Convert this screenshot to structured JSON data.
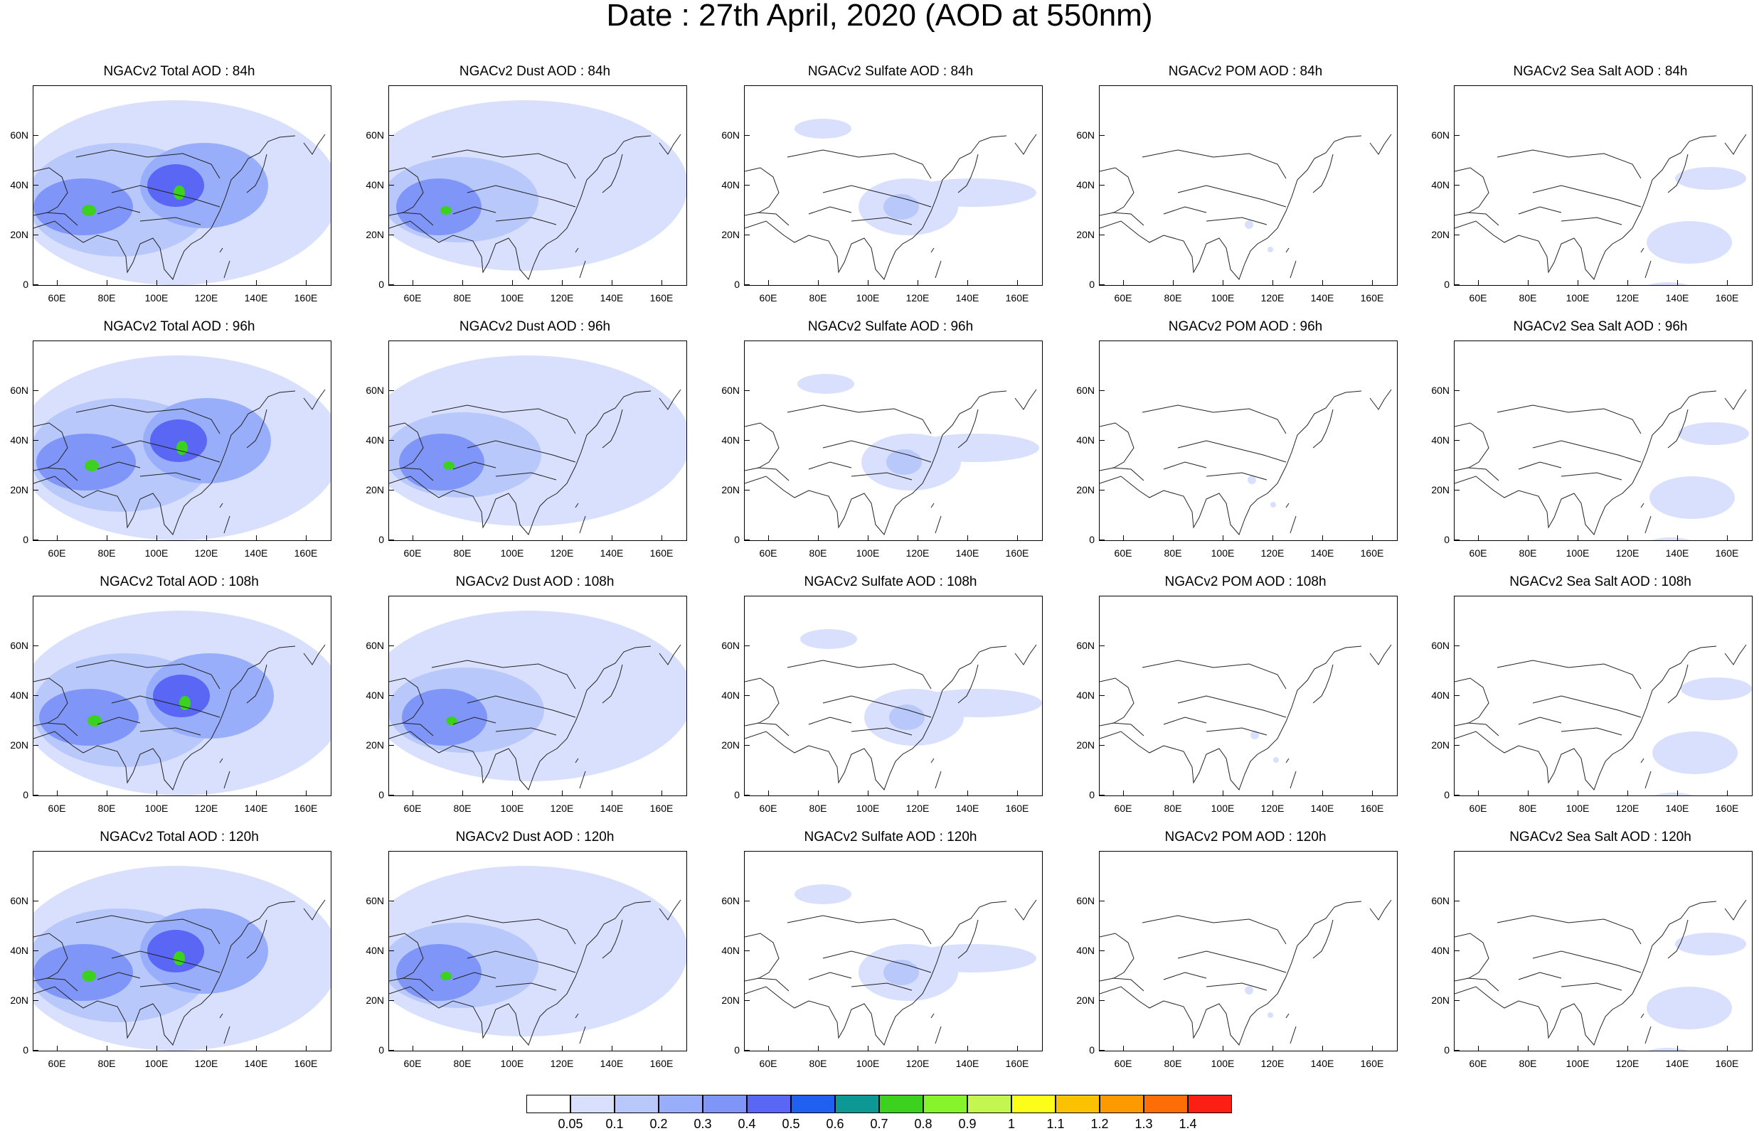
{
  "title": "Date : 27th April, 2020 (AOD at 550nm)",
  "panels": [
    [
      "NGACv2 Total AOD : 84h",
      "NGACv2 Dust AOD : 84h",
      "NGACv2 Sulfate AOD : 84h",
      "NGACv2 POM AOD : 84h",
      "NGACv2 Sea Salt AOD : 84h"
    ],
    [
      "NGACv2 Total AOD : 96h",
      "NGACv2 Dust AOD : 96h",
      "NGACv2 Sulfate AOD : 96h",
      "NGACv2 POM AOD : 96h",
      "NGACv2 Sea Salt AOD : 96h"
    ],
    [
      "NGACv2 Total AOD : 108h",
      "NGACv2 Dust AOD : 108h",
      "NGACv2 Sulfate AOD : 108h",
      "NGACv2 POM AOD : 108h",
      "NGACv2 Sea Salt AOD : 108h"
    ],
    [
      "NGACv2 Total AOD : 120h",
      "NGACv2 Dust AOD : 120h",
      "NGACv2 Sulfate AOD : 120h",
      "NGACv2 POM AOD : 120h",
      "NGACv2 Sea Salt  AOD : 120h"
    ]
  ],
  "lat_labels": [
    "60N",
    "40N",
    "20N",
    "0"
  ],
  "lon_labels": [
    "60E",
    "80E",
    "100E",
    "120E",
    "140E",
    "160E"
  ],
  "colorbar": {
    "labels": [
      "0.05",
      "0.1",
      "0.2",
      "0.3",
      "0.4",
      "0.5",
      "0.6",
      "0.7",
      "0.8",
      "0.9",
      "1",
      "1.1",
      "1.2",
      "1.3",
      "1.4"
    ],
    "colors": [
      "#ffffff",
      "#d9e0fd",
      "#b9c8fb",
      "#98aefa",
      "#7f95f8",
      "#5a67f5",
      "#1f60f0",
      "#0d9896",
      "#3cd11f",
      "#86f42a",
      "#c3f64e",
      "#fcfe1a",
      "#fcc100",
      "#fd9a00",
      "#fd6e09",
      "#fb2013"
    ]
  },
  "icons": {
    "coastline": "coastline-outline"
  }
}
